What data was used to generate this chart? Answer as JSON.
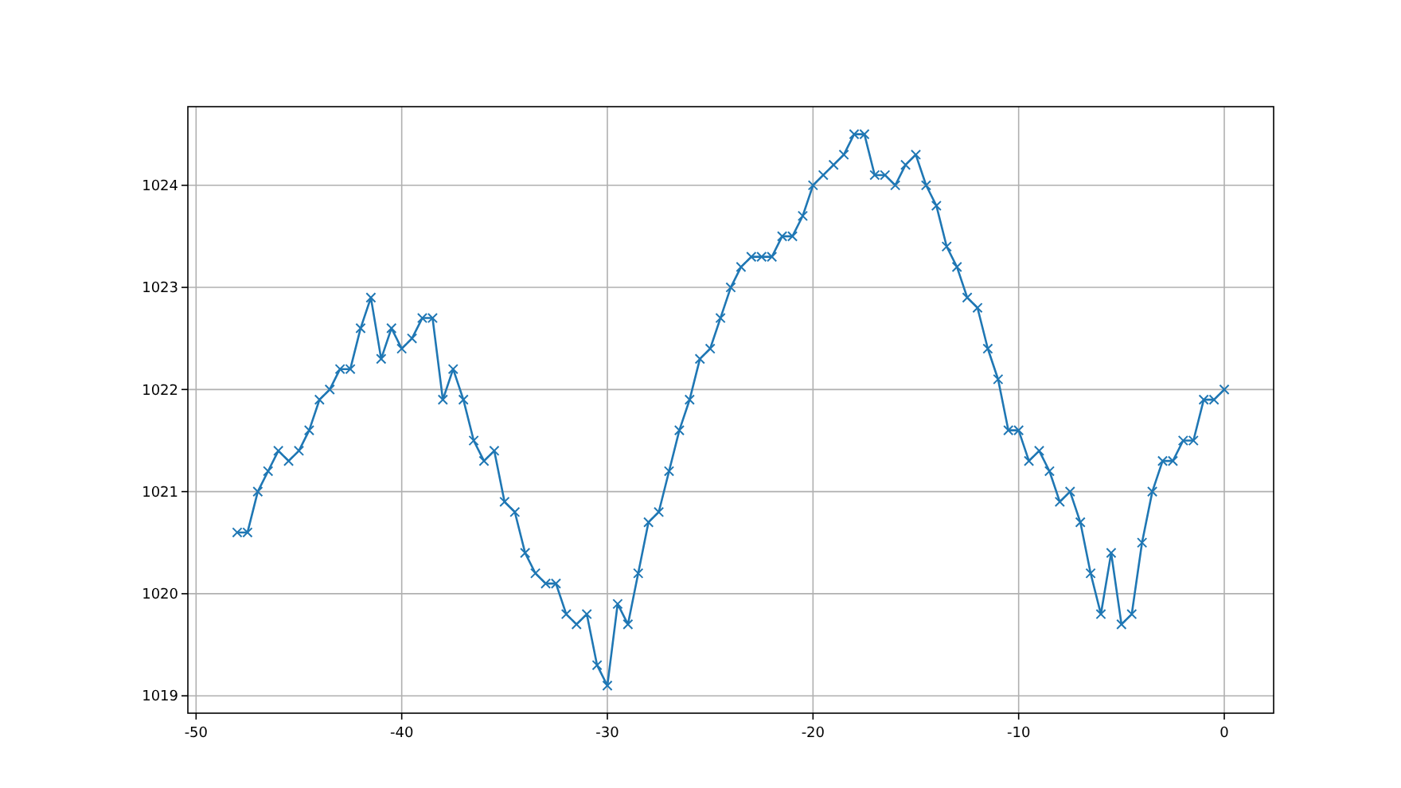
{
  "chart_data": {
    "type": "line",
    "marker": "cross",
    "grid": true,
    "xlim": [
      -50.4,
      2.4
    ],
    "xticks": [
      -50,
      -40,
      -30,
      -20,
      -10,
      0
    ],
    "ylim": [
      1018.83,
      1024.77
    ],
    "yticks": [
      1019,
      1020,
      1021,
      1022,
      1023,
      1024
    ],
    "x": [
      -48,
      -47.5,
      -47,
      -46.5,
      -46,
      -45.5,
      -45,
      -44.5,
      -44,
      -43.5,
      -43,
      -42.5,
      -42,
      -41.5,
      -41,
      -40.5,
      -40,
      -39.5,
      -39,
      -38.5,
      -38,
      -37.5,
      -37,
      -36.5,
      -36,
      -35.5,
      -35,
      -34.5,
      -34,
      -33.5,
      -33,
      -32.5,
      -32,
      -31.5,
      -31,
      -30.5,
      -30,
      -29.5,
      -29,
      -28.5,
      -28,
      -27.5,
      -27,
      -26.5,
      -26,
      -25.5,
      -25,
      -24.5,
      -24,
      -23.5,
      -23,
      -22.5,
      -22,
      -21.5,
      -21,
      -20.5,
      -20,
      -19.5,
      -19,
      -18.5,
      -18,
      -17.5,
      -17,
      -16.5,
      -16,
      -15.5,
      -15,
      -14.5,
      -14,
      -13.5,
      -13,
      -12.5,
      -12,
      -11.5,
      -11,
      -10.5,
      -10,
      -9.5,
      -9,
      -8.5,
      -8,
      -7.5,
      -7,
      -6.5,
      -6,
      -5.5,
      -5,
      -4.5,
      -4,
      -3.5,
      -3,
      -2.5,
      -2,
      -1.5,
      -1,
      -0.5,
      0
    ],
    "series": [
      {
        "color": "#1f77b4",
        "values": [
          1020.6,
          1020.6,
          1021.0,
          1021.2,
          1021.4,
          1021.3,
          1021.4,
          1021.6,
          1021.9,
          1022.0,
          1022.2,
          1022.2,
          1022.6,
          1022.9,
          1022.3,
          1022.6,
          1022.4,
          1022.5,
          1022.7,
          1022.7,
          1021.9,
          1022.2,
          1021.9,
          1021.5,
          1021.3,
          1021.4,
          1020.9,
          1020.8,
          1020.4,
          1020.2,
          1020.1,
          1020.1,
          1019.8,
          1019.7,
          1019.8,
          1019.3,
          1019.1,
          1019.9,
          1019.7,
          1020.2,
          1020.7,
          1020.8,
          1021.2,
          1021.6,
          1021.9,
          1022.3,
          1022.4,
          1022.7,
          1023.0,
          1023.2,
          1023.3,
          1023.3,
          1023.3,
          1023.5,
          1023.5,
          1023.7,
          1024.0,
          1024.1,
          1024.2,
          1024.3,
          1024.5,
          1024.5,
          1024.1,
          1024.1,
          1024.0,
          1024.2,
          1024.3,
          1024.0,
          1023.8,
          1023.4,
          1023.2,
          1022.9,
          1022.8,
          1022.4,
          1022.1,
          1021.6,
          1021.6,
          1021.3,
          1021.4,
          1021.2,
          1020.9,
          1021.0,
          1020.7,
          1020.2,
          1019.8,
          1020.4,
          1019.7,
          1019.8,
          1020.5,
          1021.0,
          1021.3,
          1021.3,
          1021.5,
          1021.5,
          1021.9,
          1021.9,
          1022.0
        ]
      }
    ]
  }
}
